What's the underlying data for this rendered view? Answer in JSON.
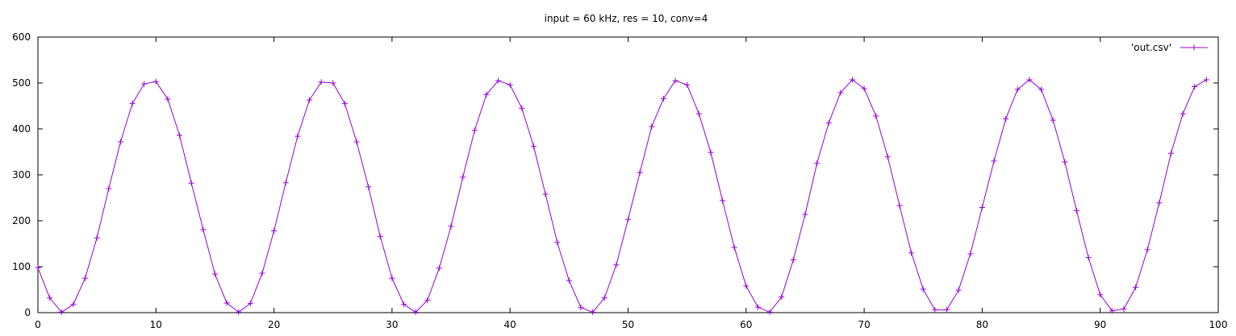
{
  "chart_data": {
    "type": "line",
    "title": "input = 60 kHz, res = 10, conv=4",
    "xlabel": "",
    "ylabel": "",
    "xlim": [
      0,
      100
    ],
    "ylim": [
      0,
      600
    ],
    "x_ticks": [
      0,
      10,
      20,
      30,
      40,
      50,
      60,
      70,
      80,
      90,
      100
    ],
    "y_ticks": [
      0,
      100,
      200,
      300,
      400,
      500,
      600
    ],
    "grid": false,
    "legend_position": "top-right",
    "series": [
      {
        "name": "'out.csv'",
        "color": "#9400d3",
        "marker": "plus",
        "x": [
          0,
          1,
          2,
          3,
          4,
          5,
          6,
          7,
          8,
          9,
          10,
          11,
          12,
          13,
          14,
          15,
          16,
          17,
          18,
          19,
          20,
          21,
          22,
          23,
          24,
          25,
          26,
          27,
          28,
          29,
          30,
          31,
          32,
          33,
          34,
          35,
          36,
          37,
          38,
          39,
          40,
          41,
          42,
          43,
          44,
          45,
          46,
          47,
          48,
          49,
          50,
          51,
          52,
          53,
          54,
          55,
          56,
          57,
          58,
          59,
          60,
          61,
          62,
          63,
          64,
          65,
          66,
          67,
          68,
          69,
          70,
          71,
          72,
          73,
          74,
          75,
          76,
          77,
          78,
          79,
          80,
          81,
          82,
          83,
          84,
          85,
          86,
          87,
          88,
          89,
          90,
          91,
          92,
          93,
          94,
          95,
          96,
          97,
          98,
          99
        ],
        "values": [
          98,
          32,
          1,
          18,
          75,
          163,
          270,
          372,
          455,
          498,
          503,
          465,
          386,
          282,
          181,
          84,
          21,
          1,
          20,
          86,
          178,
          283,
          384,
          463,
          502,
          500,
          455,
          372,
          274,
          166,
          75,
          18,
          1,
          27,
          97,
          188,
          295,
          397,
          475,
          505,
          496,
          445,
          362,
          258,
          153,
          70,
          11,
          1,
          32,
          104,
          203,
          305,
          405,
          466,
          505,
          496,
          433,
          349,
          244,
          142,
          58,
          12,
          1,
          34,
          115,
          214,
          325,
          413,
          479,
          507,
          488,
          428,
          339,
          233,
          130,
          51,
          6,
          6,
          49,
          128,
          229,
          330,
          422,
          486,
          507,
          486,
          419,
          328,
          222,
          120,
          39,
          4,
          8,
          55,
          137,
          239,
          347,
          433,
          492,
          507
        ]
      }
    ]
  }
}
